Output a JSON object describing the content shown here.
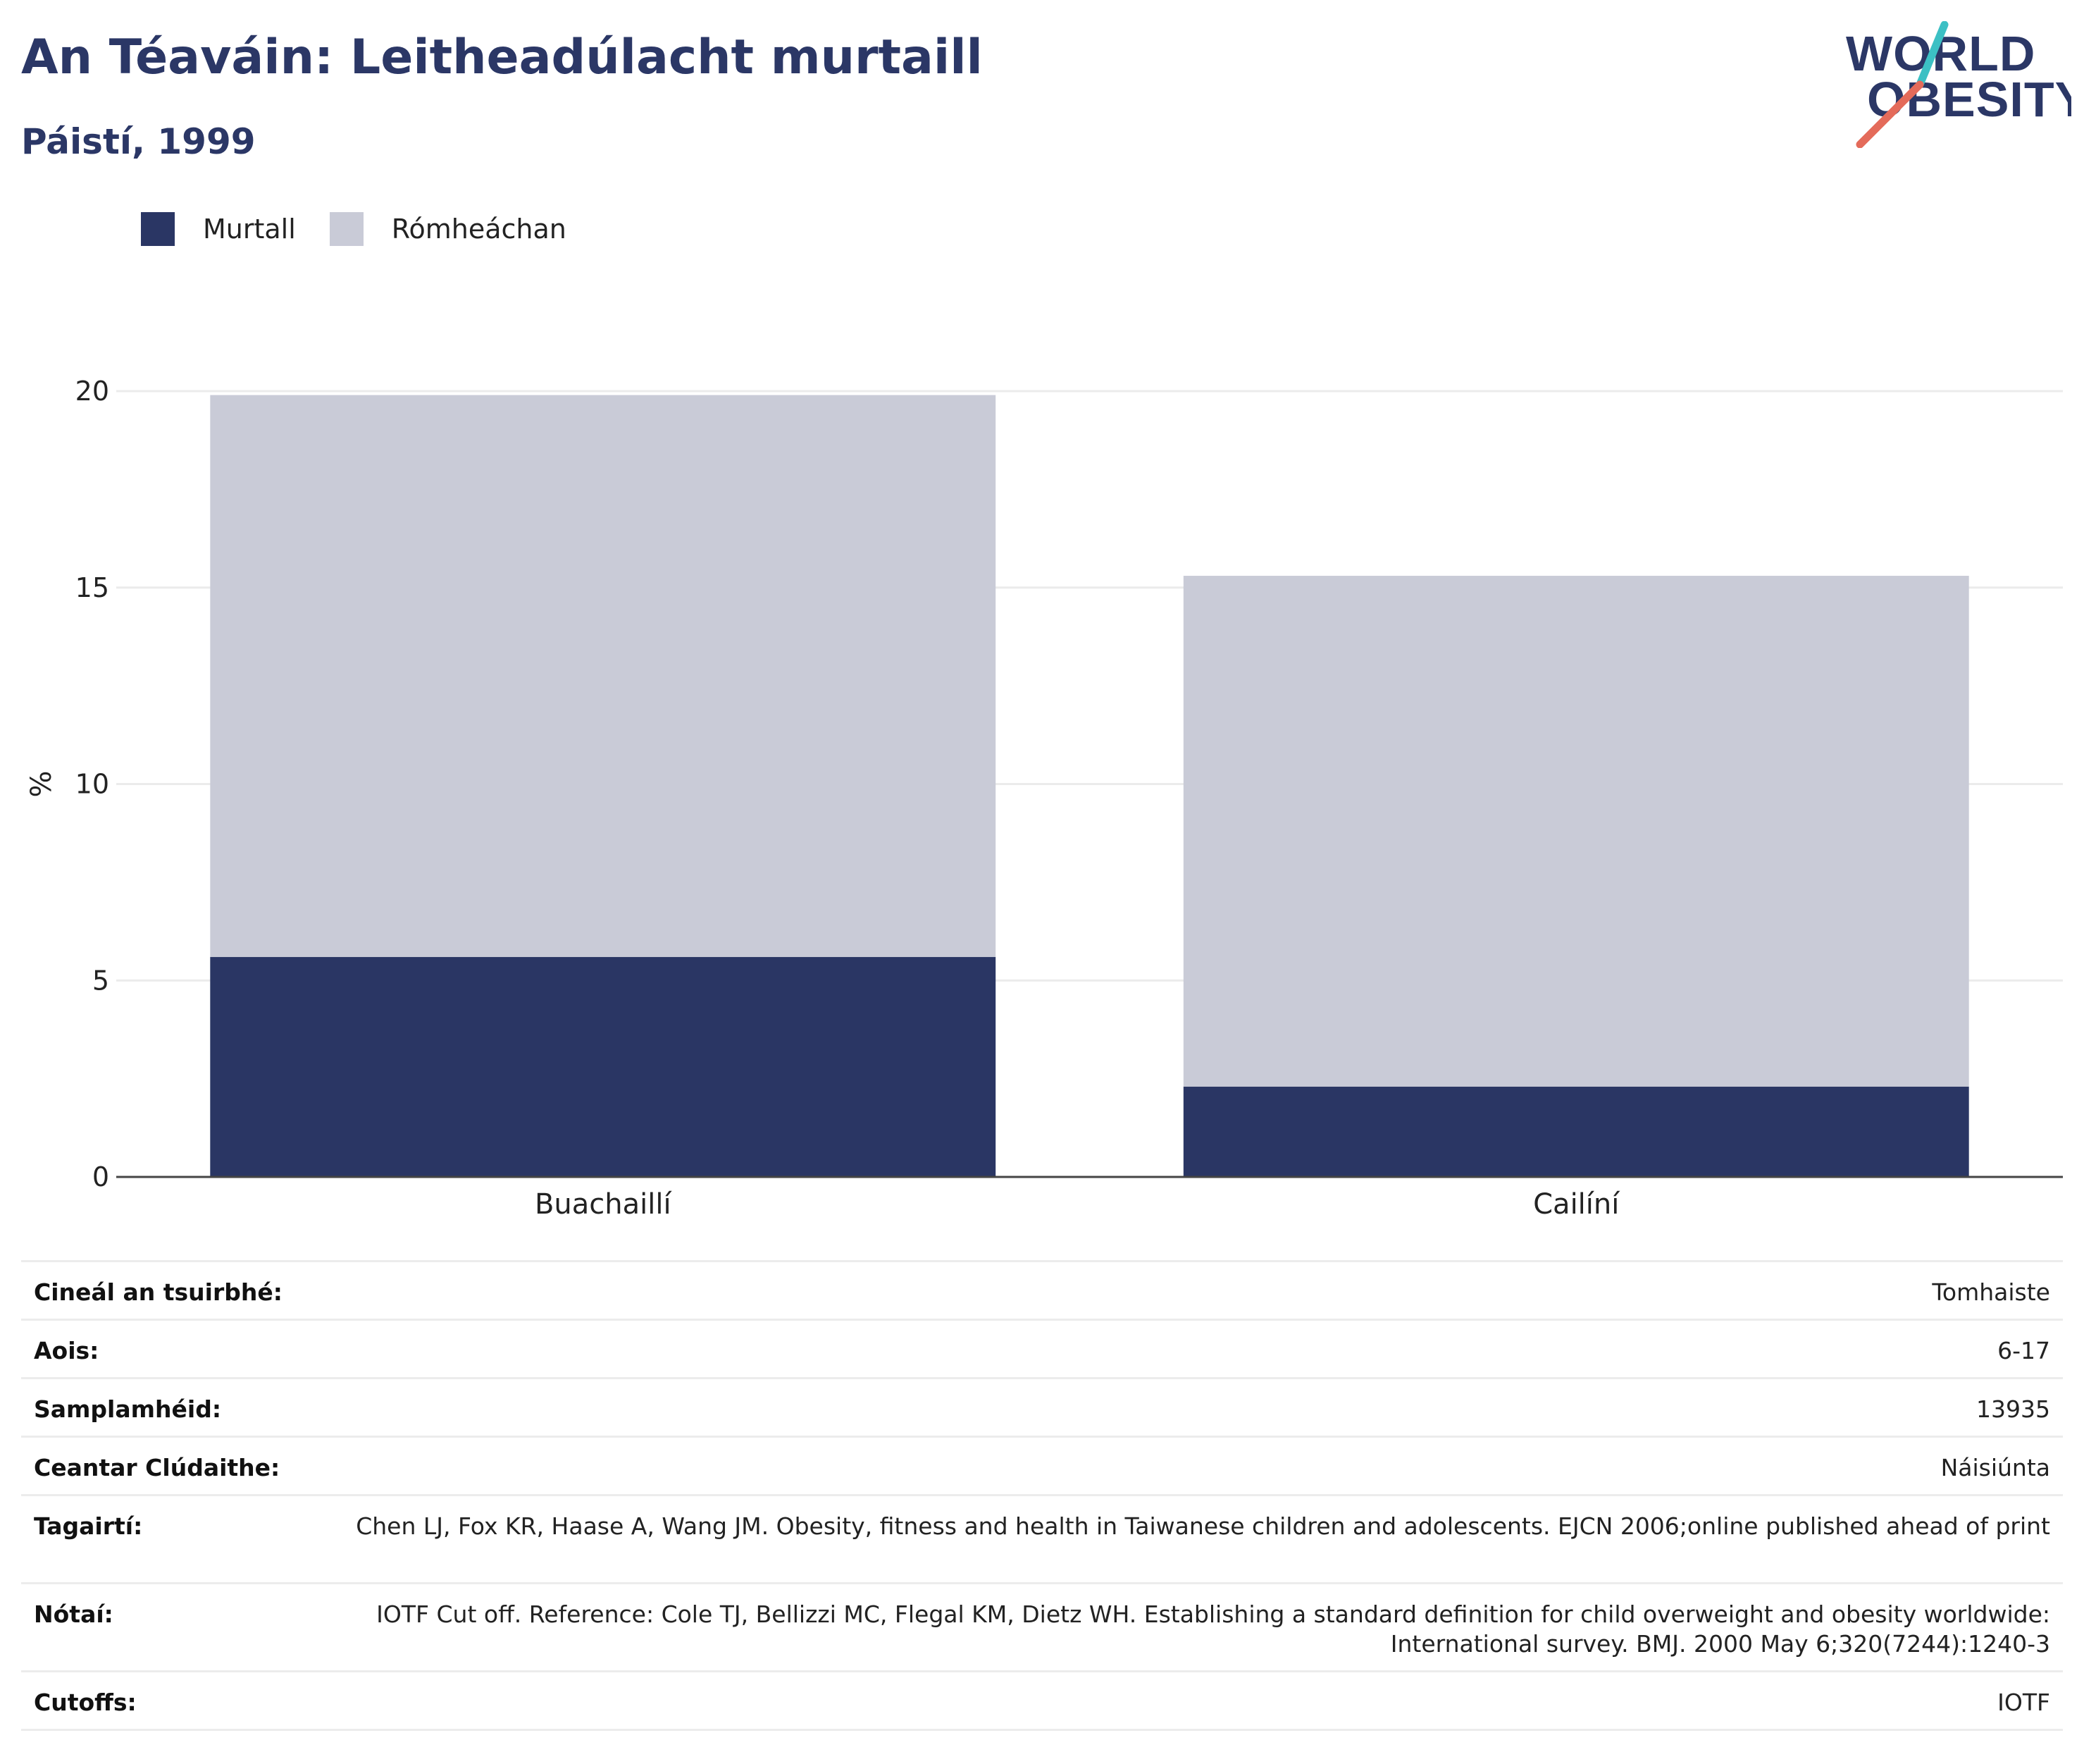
{
  "header": {
    "title": "An Téaváin: Leitheadúlacht murtaill",
    "subtitle": "Páistí, 1999"
  },
  "logo": {
    "line1": "WORLD",
    "line2": "OBESITY"
  },
  "legend": {
    "items": [
      {
        "label": "Murtall",
        "color": "#2a3664"
      },
      {
        "label": "Rómheáchan",
        "color": "#c9cbd7"
      }
    ]
  },
  "chart_data": {
    "type": "bar",
    "stacked": true,
    "categories": [
      "Buachaillí",
      "Cailíní"
    ],
    "series": [
      {
        "name": "Murtall",
        "color": "#2a3664",
        "values": [
          5.6,
          2.3
        ]
      },
      {
        "name": "Rómheáchan",
        "color": "#c9cbd7",
        "values": [
          14.3,
          13.0
        ]
      }
    ],
    "ylabel": "%",
    "ylim": [
      0,
      20
    ],
    "yticks": [
      0,
      5,
      10,
      15,
      20
    ],
    "grid": true,
    "legend_position": "top-left"
  },
  "info": {
    "rows": [
      {
        "key": "Cineál an tsuirbhé:",
        "value": "Tomhaiste"
      },
      {
        "key": "Aois:",
        "value": "6-17"
      },
      {
        "key": "Samplamhéid:",
        "value": "13935"
      },
      {
        "key": "Ceantar Clúdaithe:",
        "value": "Náisiúnta"
      },
      {
        "key": "Tagairtí:",
        "value": "Chen LJ, Fox KR, Haase A, Wang JM. Obesity, fitness and health in Taiwanese children and adolescents. EJCN 2006;online published ahead of print"
      },
      {
        "key": "Nótaí:",
        "value": "IOTF Cut off. Reference: Cole TJ, Bellizzi MC, Flegal KM, Dietz WH. Establishing a standard definition for child overweight and obesity worldwide: International survey. BMJ. 2000 May 6;320(7244):1240-3"
      },
      {
        "key": "Cutoffs:",
        "value": "IOTF"
      }
    ]
  }
}
